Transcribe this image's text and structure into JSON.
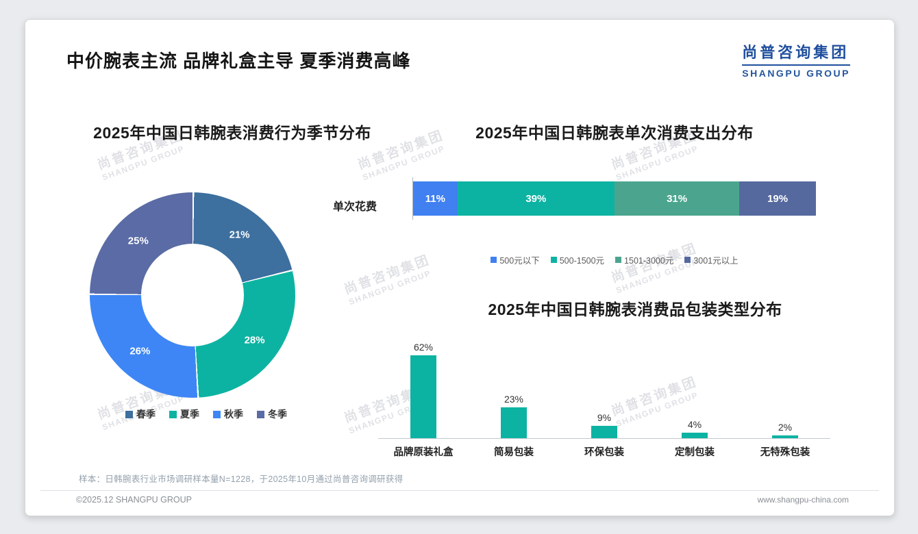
{
  "page": {
    "title": "中价腕表主流 品牌礼盒主导 夏季消费高峰",
    "logo": {
      "cn": "尚普咨询集团",
      "en": "SHANGPU GROUP"
    },
    "note": "样本：日韩腕表行业市场调研样本量N=1228，于2025年10月通过尚普咨询调研获得",
    "footer": {
      "left": "©2025.12 SHANGPU GROUP",
      "right": "www.shangpu-china.com"
    },
    "watermark": {
      "cn": "尚普咨询集团",
      "en": "SHANGPU GROUP"
    }
  },
  "chart_data": [
    {
      "type": "pie",
      "subtype": "donut",
      "title": "2025年中国日韩腕表消费行为季节分布",
      "categories": [
        "春季",
        "夏季",
        "秋季",
        "冬季"
      ],
      "values": [
        21,
        28,
        26,
        25
      ],
      "data_labels": [
        "21%",
        "28%",
        "26%",
        "25%"
      ],
      "colors": [
        "#3d6f9f",
        "#0db3a2",
        "#3e86f5",
        "#5a6ba5"
      ],
      "legend_position": "bottom"
    },
    {
      "type": "bar",
      "subtype": "horizontal-stacked",
      "title": "2025年中国日韩腕表单次消费支出分布",
      "row_label": "单次花费",
      "categories": [
        "500元以下",
        "500-1500元",
        "1501-3000元",
        "3001元以上"
      ],
      "values": [
        11,
        39,
        31,
        19
      ],
      "data_labels": [
        "11%",
        "39%",
        "31%",
        "19%"
      ],
      "colors": [
        "#4080f0",
        "#0db3a2",
        "#4ba58e",
        "#55699f"
      ],
      "legend_position": "bottom",
      "xlim": [
        0,
        100
      ]
    },
    {
      "type": "bar",
      "subtype": "vertical",
      "title": "2025年中国日韩腕表消费品包装类型分布",
      "categories": [
        "品牌原装礼盒",
        "简易包装",
        "环保包装",
        "定制包装",
        "无特殊包装"
      ],
      "values": [
        62,
        23,
        9,
        4,
        2
      ],
      "data_labels": [
        "62%",
        "23%",
        "9%",
        "4%",
        "2%"
      ],
      "color": "#0db3a2",
      "ylim": [
        0,
        70
      ]
    }
  ]
}
